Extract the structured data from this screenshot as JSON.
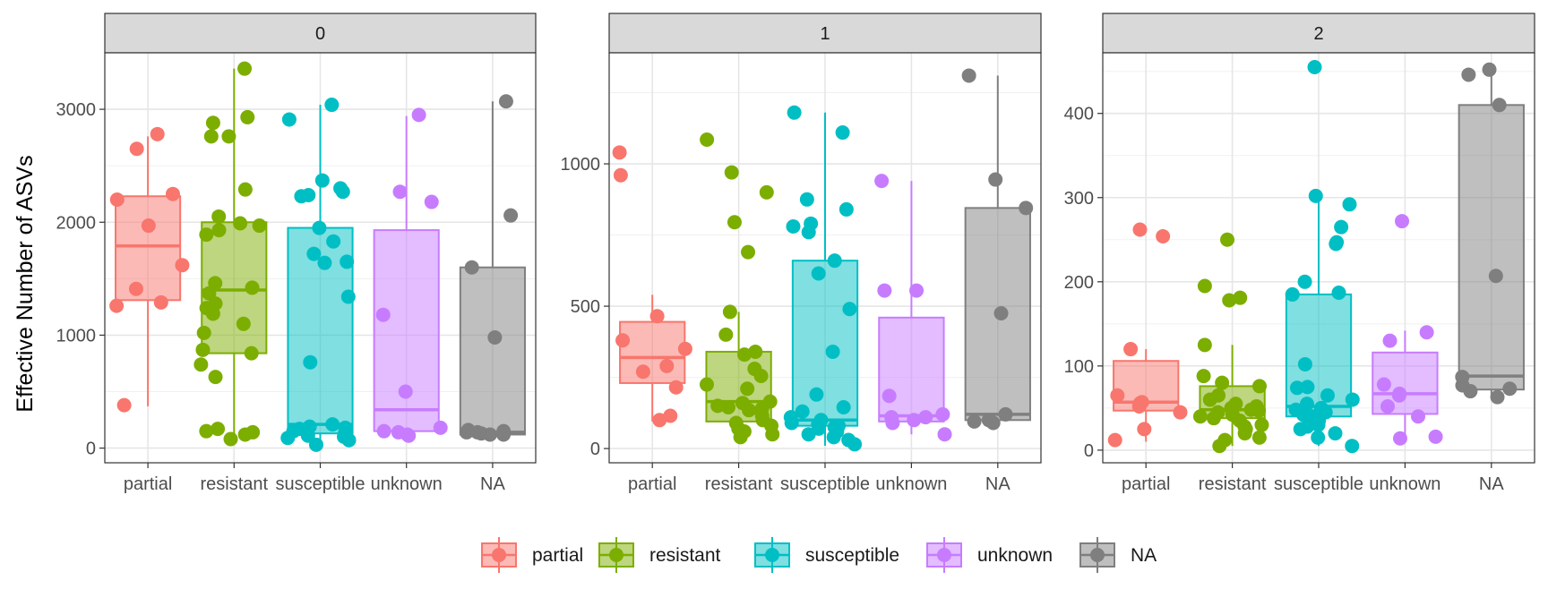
{
  "chart_data": {
    "type": "boxplot",
    "ylabel": "Effective Number of ASVs",
    "xlabel": "",
    "categories": [
      "partial",
      "resistant",
      "susceptible",
      "unknown",
      "NA"
    ],
    "colors": {
      "partial": "#F8766D",
      "resistant": "#7CAE00",
      "susceptible": "#00BFC4",
      "unknown": "#C77CFF",
      "NA": "#7F7F7F"
    },
    "legend": {
      "position": "bottom",
      "entries": [
        "partial",
        "resistant",
        "susceptible",
        "unknown",
        "NA"
      ]
    },
    "grid": true,
    "facets": [
      {
        "label": "0",
        "ylim": [
          -130,
          3500
        ],
        "yticks": [
          0,
          1000,
          2000,
          3000
        ],
        "boxes": {
          "partial": {
            "q1": 1310,
            "median": 1790,
            "q3": 2230,
            "whisker_low": 370,
            "whisker_high": 2760
          },
          "resistant": {
            "q1": 840,
            "median": 1400,
            "q3": 2000,
            "whisker_low": 80,
            "whisker_high": 3360
          },
          "susceptible": {
            "q1": 130,
            "median": 210,
            "q3": 1950,
            "whisker_low": 20,
            "whisker_high": 3040
          },
          "unknown": {
            "q1": 150,
            "median": 340,
            "q3": 1930,
            "whisker_low": 110,
            "whisker_high": 2940
          },
          "NA": {
            "q1": 120,
            "median": 140,
            "q3": 1600,
            "whisker_low": 110,
            "whisker_high": 3070
          }
        },
        "points": {
          "partial": [
            2780,
            2650,
            2250,
            2200,
            1970,
            1620,
            1410,
            1290,
            1260,
            380
          ],
          "resistant": [
            3360,
            2930,
            2880,
            2760,
            2760,
            2290,
            2050,
            1990,
            1970,
            1930,
            1890,
            1460,
            1420,
            1370,
            1280,
            1240,
            1190,
            1100,
            1020,
            870,
            840,
            740,
            630,
            170,
            150,
            140,
            120,
            80
          ],
          "susceptible": [
            3040,
            2910,
            2370,
            2300,
            2270,
            2240,
            2230,
            1950,
            1830,
            1720,
            1650,
            1640,
            1340,
            760,
            210,
            190,
            180,
            170,
            150,
            130,
            110,
            100,
            90,
            70,
            30
          ],
          "unknown": [
            2950,
            2270,
            2180,
            1180,
            500,
            180,
            150,
            140,
            120,
            110
          ],
          "NA": [
            3070,
            2060,
            1600,
            980,
            160,
            150,
            140,
            140,
            130,
            120,
            120
          ]
        }
      },
      {
        "label": "1",
        "ylim": [
          -50,
          1390
        ],
        "yticks": [
          0,
          500,
          1000
        ],
        "boxes": {
          "partial": {
            "q1": 230,
            "median": 320,
            "q3": 445,
            "whisker_low": 95,
            "whisker_high": 540
          },
          "resistant": {
            "q1": 95,
            "median": 165,
            "q3": 340,
            "whisker_low": 40,
            "whisker_high": 480
          },
          "susceptible": {
            "q1": 80,
            "median": 100,
            "q3": 660,
            "whisker_low": 10,
            "whisker_high": 1180
          },
          "unknown": {
            "q1": 95,
            "median": 115,
            "q3": 460,
            "whisker_low": 50,
            "whisker_high": 940
          },
          "NA": {
            "q1": 100,
            "median": 120,
            "q3": 845,
            "whisker_low": 95,
            "whisker_high": 1310
          }
        },
        "points": {
          "partial": [
            1040,
            960,
            465,
            380,
            350,
            290,
            270,
            215,
            115,
            100
          ],
          "resistant": [
            1085,
            970,
            900,
            795,
            690,
            480,
            400,
            340,
            330,
            280,
            255,
            225,
            210,
            165,
            160,
            150,
            145,
            140,
            135,
            130,
            115,
            100,
            90,
            80,
            70,
            60,
            50,
            40
          ],
          "susceptible": [
            1180,
            1110,
            875,
            840,
            790,
            780,
            760,
            660,
            615,
            490,
            340,
            190,
            145,
            130,
            110,
            100,
            90,
            85,
            80,
            75,
            70,
            60,
            50,
            40,
            30,
            15
          ],
          "unknown": [
            940,
            555,
            555,
            185,
            120,
            110,
            110,
            100,
            90,
            50
          ],
          "NA": [
            1310,
            945,
            845,
            475,
            120,
            100,
            95,
            90
          ]
        }
      },
      {
        "label": "2",
        "ylim": [
          -15,
          472
        ],
        "yticks": [
          0,
          100,
          200,
          300,
          400
        ],
        "boxes": {
          "partial": {
            "q1": 47,
            "median": 57,
            "q3": 106,
            "whisker_low": 10,
            "whisker_high": 120
          },
          "resistant": {
            "q1": 38,
            "median": 48,
            "q3": 76,
            "whisker_low": 5,
            "whisker_high": 125
          },
          "susceptible": {
            "q1": 40,
            "median": 52,
            "q3": 185,
            "whisker_low": 5,
            "whisker_high": 300
          },
          "unknown": {
            "q1": 43,
            "median": 67,
            "q3": 116,
            "whisker_low": 15,
            "whisker_high": 142
          },
          "NA": {
            "q1": 72,
            "median": 88,
            "q3": 410,
            "whisker_low": 62,
            "whisker_high": 450
          }
        },
        "points": {
          "partial": [
            262,
            254,
            120,
            65,
            57,
            56,
            52,
            45,
            25,
            12
          ],
          "resistant": [
            250,
            195,
            181,
            178,
            125,
            88,
            80,
            76,
            65,
            60,
            55,
            52,
            50,
            48,
            47,
            45,
            42,
            40,
            38,
            35,
            30,
            28,
            25,
            20,
            15,
            12,
            5
          ],
          "susceptible": [
            455,
            302,
            292,
            265,
            247,
            245,
            200,
            187,
            185,
            102,
            75,
            74,
            65,
            60,
            55,
            50,
            48,
            45,
            42,
            40,
            38,
            35,
            30,
            28,
            25,
            20,
            15,
            5
          ],
          "unknown": [
            272,
            140,
            130,
            78,
            67,
            65,
            52,
            40,
            16,
            14
          ],
          "NA": [
            452,
            446,
            410,
            207,
            87,
            77,
            70,
            63,
            73
          ]
        }
      }
    ]
  }
}
